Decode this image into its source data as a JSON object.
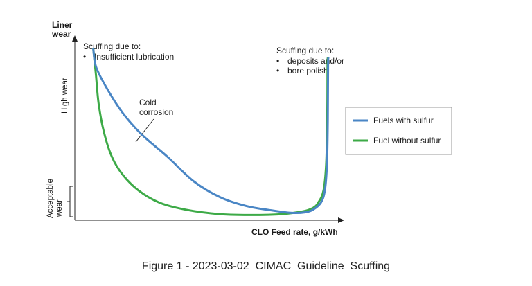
{
  "caption": "Figure 1 - 2023-03-02_CIMAC_Guideline_Scuffing",
  "colors": {
    "blue": "#4a86c5",
    "green": "#3daa47",
    "axis": "#222222",
    "legend_border": "#9a9a9a"
  },
  "chart_data": {
    "type": "line",
    "title": "",
    "xlabel": "CLO Feed rate, g/kWh",
    "ylabel": "Liner wear",
    "xlim": [
      0,
      100
    ],
    "ylim": [
      0,
      100
    ],
    "y_annotations": {
      "high": "High wear",
      "acceptable_line1": "Acceptable",
      "acceptable_line2": "wear"
    },
    "annotations": {
      "left_title": "Scuffing due to:",
      "left_bullet": "Insufficient lubrication",
      "cold_line1": "Cold",
      "cold_line2": "corrosion",
      "right_title": "Scuffing due to:",
      "right_bullet1": "deposits and/or",
      "right_bullet2": "bore polish",
      "bullet_char": "•"
    },
    "series": [
      {
        "name": "Fuels with sulfur",
        "color": "#4a86c5",
        "points": [
          [
            7,
            95
          ],
          [
            8,
            85
          ],
          [
            12,
            73
          ],
          [
            18,
            59
          ],
          [
            25,
            47
          ],
          [
            35,
            34
          ],
          [
            45,
            20
          ],
          [
            55,
            11
          ],
          [
            65,
            6
          ],
          [
            75,
            3.5
          ],
          [
            82,
            2.2
          ],
          [
            87,
            2.5
          ],
          [
            90,
            4
          ],
          [
            93,
            8
          ],
          [
            94.5,
            15
          ],
          [
            95.3,
            30
          ],
          [
            95.6,
            55
          ],
          [
            95.7,
            85
          ],
          [
            95.8,
            90
          ]
        ]
      },
      {
        "name": "Fuel without sulfur",
        "color": "#3daa47",
        "points": [
          [
            7,
            95
          ],
          [
            8,
            80
          ],
          [
            9,
            64
          ],
          [
            11,
            48
          ],
          [
            14,
            34
          ],
          [
            18,
            24
          ],
          [
            24,
            15
          ],
          [
            32,
            8
          ],
          [
            42,
            4
          ],
          [
            55,
            1.5
          ],
          [
            68,
            1
          ],
          [
            78,
            1.5
          ],
          [
            86,
            3
          ],
          [
            90,
            5
          ],
          [
            92,
            8
          ],
          [
            94,
            15
          ],
          [
            95,
            30
          ],
          [
            95.4,
            55
          ],
          [
            95.5,
            85
          ],
          [
            95.6,
            90
          ]
        ]
      }
    ],
    "legend": [
      "Fuels with sulfur",
      "Fuel without sulfur"
    ],
    "legend_position": "right"
  }
}
